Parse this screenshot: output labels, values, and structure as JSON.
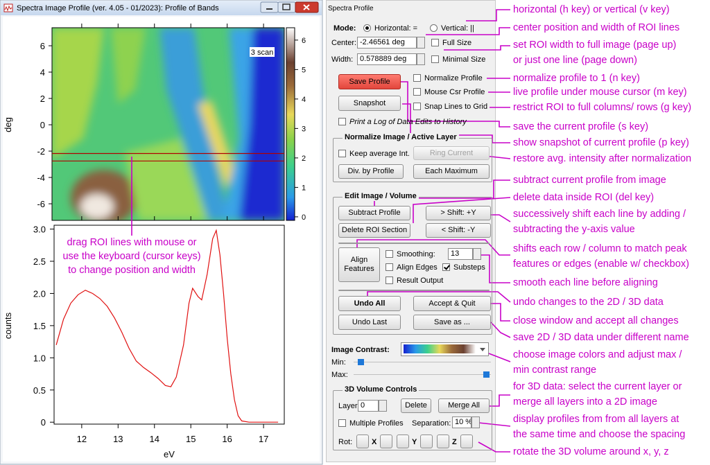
{
  "window": {
    "title": "Spectra Image Profile (ver. 4.05 - 01/2023): Profile of Bands"
  },
  "image_plot": {
    "ylabel": "deg",
    "ylim": [
      -7.26,
      7.37
    ],
    "yticks": [
      -6,
      -4,
      -2,
      0,
      2,
      4,
      6
    ],
    "colorbar": {
      "lim": [
        -0.12,
        6.42
      ],
      "ticks": [
        0,
        1,
        2,
        3,
        4,
        5,
        6
      ]
    },
    "roi_lines": [
      -2.18,
      -2.75
    ],
    "overlay_label": "3 scan"
  },
  "profile_plot": {
    "type": "line",
    "color": "#e01010",
    "xlabel": "eV",
    "ylabel": "counts",
    "xlim": [
      11.24,
      17.57
    ],
    "ylim": [
      -0.03,
      3.06
    ],
    "xticks": [
      12,
      13,
      14,
      15,
      16,
      17
    ],
    "yticks": [
      0,
      0.5,
      {
        "value": 1,
        "label": "1.0"
      },
      1.5,
      {
        "value": 2,
        "label": "2.0"
      },
      2.5,
      {
        "value": 3,
        "label": "3.0"
      }
    ],
    "x": [
      11.3,
      11.5,
      11.7,
      11.9,
      12.1,
      12.3,
      12.5,
      12.7,
      12.9,
      13.1,
      13.3,
      13.5,
      13.7,
      13.9,
      14.1,
      14.3,
      14.45,
      14.6,
      14.8,
      14.95,
      15.05,
      15.2,
      15.3,
      15.45,
      15.6,
      15.7,
      15.8,
      15.9,
      16.0,
      16.1,
      16.2,
      16.3,
      16.4,
      16.6,
      17.0,
      17.4
    ],
    "values": [
      1.2,
      1.6,
      1.85,
      1.98,
      2.05,
      2.0,
      1.92,
      1.8,
      1.62,
      1.4,
      1.15,
      0.95,
      0.85,
      0.77,
      0.68,
      0.57,
      0.55,
      0.7,
      1.2,
      1.85,
      2.08,
      1.95,
      1.9,
      2.3,
      2.85,
      2.98,
      2.6,
      2.0,
      1.3,
      0.75,
      0.35,
      0.1,
      0.02,
      0.0,
      0.0,
      0.0
    ]
  },
  "drag_note": [
    "drag ROI lines with mouse or",
    "use the keyboard (cursor keys)",
    "to change position and width"
  ],
  "panel": {
    "title": "Spectra Profile",
    "mode_label": "Mode:",
    "horizontal": "Horizontal: =",
    "vertical": "Vertical: ||",
    "center_label": "Center:",
    "center_value": "-2.46561 deg",
    "width_label": "Width:",
    "width_value": "0.578889 deg",
    "full_size": "Full Size",
    "minimal_size": "Minimal Size",
    "save_profile": "Save Profile",
    "normalize_profile": "Normalize Profile",
    "mouse_csr_profile": "Mouse Csr Profile",
    "snapshot": "Snapshot",
    "snap_lines": "Snap Lines to Grid",
    "print_log": "Print a Log of Data Edits to History",
    "normalize_group": {
      "title": "Normalize Image / Active Layer",
      "keep_average": "Keep average Int.",
      "ring_current": "Ring Current",
      "div_by_profile": "Div. by Profile",
      "each_maximum": "Each Maximum"
    },
    "edit_group": {
      "title": "Edit Image / Volume",
      "subtract_profile": "Subtract Profile",
      "shift_plus": "> Shift: +Y",
      "delete_roi": "Delete ROI Section",
      "shift_minus": "< Shift: -Y",
      "align_features": "Align Features",
      "smoothing": "Smoothing:",
      "smoothing_value": "13",
      "align_edges": "Align Edges",
      "substeps": "Substeps",
      "result_output": "Result Output",
      "undo_all": "Undo All",
      "accept_quit": "Accept & Quit",
      "undo_last": "Undo Last",
      "save_as": "Save as ..."
    },
    "image_contrast": "Image Contrast:",
    "min_label": "Min:",
    "max_label": "Max:",
    "volume_group": {
      "title": "3D Volume Controls",
      "layer_label": "Layer:",
      "layer_value": "0",
      "delete": "Delete",
      "merge_all": "Merge All",
      "multiple_profiles": "Multiple Profiles",
      "separation_label": "Separation:",
      "separation_value": "10 %",
      "rot_label": "Rot:",
      "rot_axes": [
        "X",
        "Y",
        "Z"
      ]
    }
  },
  "annotations": [
    [
      "horizontal (h key) or vertical (v key)"
    ],
    [
      "center position and width of ROI lines"
    ],
    [
      "set ROI width to full image (page up)",
      "or just one line (page down)"
    ],
    [
      "normalize profile to 1 (n key)"
    ],
    [
      "live profile under mouse cursor (m key)"
    ],
    [
      "restrict ROI to full columns/ rows (g key)"
    ],
    [
      "save the current profile (s key)"
    ],
    [
      "show snapshot of current profile (p key)"
    ],
    [
      "restore avg. intensity after normalization"
    ],
    [
      "subtract current profile from image"
    ],
    [
      "delete data inside ROI (del key)"
    ],
    [
      "successively shift each line by adding /",
      "subtracting the y-axis value"
    ],
    [
      "shifts each row / column to match peak",
      "features or edges (enable w/ checkbox)"
    ],
    [
      "smooth each line before aligning"
    ],
    [
      "undo changes to the 2D / 3D data"
    ],
    [
      "close window and accept all changes"
    ],
    [
      "save 2D / 3D data under different name"
    ],
    [
      "choose image colors and adjust max /",
      "min contrast range"
    ],
    [
      "for 3D data: select the current layer or",
      "merge all layers into a 2D image"
    ],
    [
      "display profiles from from all layers at",
      "the same time and choose the spacing"
    ],
    [
      "rotate the 3D volume around x, y, z"
    ]
  ]
}
